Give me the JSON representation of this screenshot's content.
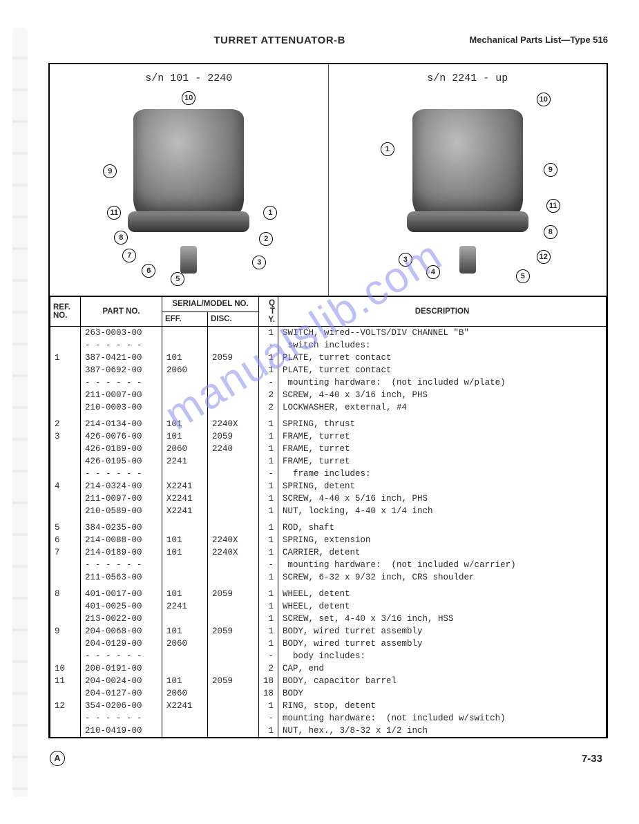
{
  "header": {
    "center": "TURRET ATTENUATOR-B",
    "right": "Mechanical Parts List—Type 516"
  },
  "figures": {
    "left_sn": "s/n 101 - 2240",
    "right_sn": "s/n 2241 - up",
    "callouts_left": [
      "1",
      "2",
      "3",
      "5",
      "6",
      "7",
      "8",
      "9",
      "10",
      "11"
    ],
    "callouts_right": [
      "1",
      "3",
      "4",
      "5",
      "8",
      "9",
      "10",
      "11",
      "12"
    ]
  },
  "watermark": "manualslib.com",
  "table": {
    "headers": {
      "ref": "REF.\nNO.",
      "part": "PART NO.",
      "serial_group": "SERIAL/MODEL NO.",
      "eff": "EFF.",
      "disc": "DISC.",
      "qty": "Q\nT\nY.",
      "desc": "DESCRIPTION"
    },
    "rows": [
      {
        "ref": "",
        "part": "263-0003-00",
        "eff": "",
        "disc": "",
        "qty": "1",
        "desc": "SWITCH, wired--VOLTS/DIV CHANNEL \"B\""
      },
      {
        "ref": "",
        "part": "- - - - - -",
        "eff": "",
        "disc": "",
        "qty": "-",
        "desc": " switch includes:"
      },
      {
        "ref": "1",
        "part": "387-0421-00",
        "eff": "101",
        "disc": "2059",
        "qty": "1",
        "desc": "PLATE, turret contact"
      },
      {
        "ref": "",
        "part": "387-0692-00",
        "eff": "2060",
        "disc": "",
        "qty": "1",
        "desc": "PLATE, turret contact"
      },
      {
        "ref": "",
        "part": "- - - - - -",
        "eff": "",
        "disc": "",
        "qty": "-",
        "desc": " mounting hardware:  (not included w/plate)"
      },
      {
        "ref": "",
        "part": "211-0007-00",
        "eff": "",
        "disc": "",
        "qty": "2",
        "desc": "SCREW, 4-40 x 3/16 inch, PHS"
      },
      {
        "ref": "",
        "part": "210-0003-00",
        "eff": "",
        "disc": "",
        "qty": "2",
        "desc": "LOCKWASHER, external, #4"
      },
      {
        "spacer": true
      },
      {
        "ref": "2",
        "part": "214-0134-00",
        "eff": "101",
        "disc": "2240X",
        "qty": "1",
        "desc": "SPRING, thrust"
      },
      {
        "ref": "3",
        "part": "426-0076-00",
        "eff": "101",
        "disc": "2059",
        "qty": "1",
        "desc": "FRAME, turret"
      },
      {
        "ref": "",
        "part": "426-0189-00",
        "eff": "2060",
        "disc": "2240",
        "qty": "1",
        "desc": "FRAME, turret"
      },
      {
        "ref": "",
        "part": "426-0195-00",
        "eff": "2241",
        "disc": "",
        "qty": "1",
        "desc": "FRAME, turret"
      },
      {
        "ref": "",
        "part": "- - - - - -",
        "eff": "",
        "disc": "",
        "qty": "-",
        "desc": "  frame includes:"
      },
      {
        "ref": "4",
        "part": "214-0324-00",
        "eff": "X2241",
        "disc": "",
        "qty": "1",
        "desc": "SPRING, detent"
      },
      {
        "ref": "",
        "part": "211-0097-00",
        "eff": "X2241",
        "disc": "",
        "qty": "1",
        "desc": "SCREW, 4-40 x 5/16 inch, PHS"
      },
      {
        "ref": "",
        "part": "210-0589-00",
        "eff": "X2241",
        "disc": "",
        "qty": "1",
        "desc": "NUT, locking, 4-40 x 1/4 inch"
      },
      {
        "spacer": true
      },
      {
        "ref": "5",
        "part": "384-0235-00",
        "eff": "",
        "disc": "",
        "qty": "1",
        "desc": "ROD, shaft"
      },
      {
        "ref": "6",
        "part": "214-0088-00",
        "eff": "101",
        "disc": "2240X",
        "qty": "1",
        "desc": "SPRING, extension"
      },
      {
        "ref": "7",
        "part": "214-0189-00",
        "eff": "101",
        "disc": "2240X",
        "qty": "1",
        "desc": "CARRIER, detent"
      },
      {
        "ref": "",
        "part": "- - - - - -",
        "eff": "",
        "disc": "",
        "qty": "-",
        "desc": " mounting hardware:  (not included w/carrier)"
      },
      {
        "ref": "",
        "part": "211-0563-00",
        "eff": "",
        "disc": "",
        "qty": "1",
        "desc": "SCREW, 6-32 x 9/32 inch, CRS shoulder"
      },
      {
        "spacer": true
      },
      {
        "ref": "8",
        "part": "401-0017-00",
        "eff": "101",
        "disc": "2059",
        "qty": "1",
        "desc": "WHEEL, detent"
      },
      {
        "ref": "",
        "part": "401-0025-00",
        "eff": "2241",
        "disc": "",
        "qty": "1",
        "desc": "WHEEL, detent"
      },
      {
        "ref": "",
        "part": "213-0022-00",
        "eff": "",
        "disc": "",
        "qty": "1",
        "desc": "SCREW, set, 4-40 x 3/16 inch, HSS"
      },
      {
        "ref": "9",
        "part": "204-0068-00",
        "eff": "101",
        "disc": "2059",
        "qty": "1",
        "desc": "BODY, wired turret assembly"
      },
      {
        "ref": "",
        "part": "204-0129-00",
        "eff": "2060",
        "disc": "",
        "qty": "1",
        "desc": "BODY, wired turret assembly"
      },
      {
        "ref": "",
        "part": "- - - - - -",
        "eff": "",
        "disc": "",
        "qty": "-",
        "desc": "  body includes:"
      },
      {
        "ref": "10",
        "part": "200-0191-00",
        "eff": "",
        "disc": "",
        "qty": "2",
        "desc": "CAP, end"
      },
      {
        "ref": "11",
        "part": "204-0024-00",
        "eff": "101",
        "disc": "2059",
        "qty": "18",
        "desc": "BODY, capacitor barrel"
      },
      {
        "ref": "",
        "part": "204-0127-00",
        "eff": "2060",
        "disc": "",
        "qty": "18",
        "desc": "BODY"
      },
      {
        "ref": "12",
        "part": "354-0206-00",
        "eff": "X2241",
        "disc": "",
        "qty": "1",
        "desc": "RING, stop, detent"
      },
      {
        "ref": "",
        "part": "- - - - - -",
        "eff": "",
        "disc": "",
        "qty": "-",
        "desc": "mounting hardware:  (not included w/switch)"
      },
      {
        "ref": "",
        "part": "210-0419-00",
        "eff": "",
        "disc": "",
        "qty": "1",
        "desc": "NUT, hex., 3/8-32 x 1/2 inch"
      }
    ]
  },
  "footer": {
    "rev": "A",
    "page": "7-33"
  }
}
